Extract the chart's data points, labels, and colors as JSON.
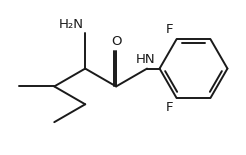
{
  "background_color": "#ffffff",
  "line_color": "#1a1a1a",
  "text_color": "#1a1a1a",
  "figsize": [
    2.46,
    1.55
  ],
  "dpi": 100,
  "atoms": {
    "NH2_label": "H₂N",
    "O_label": "O",
    "HN_label": "HN",
    "F_top_label": "F",
    "F_bot_label": "F"
  },
  "bond_width": 1.4,
  "font_size": 9.5
}
